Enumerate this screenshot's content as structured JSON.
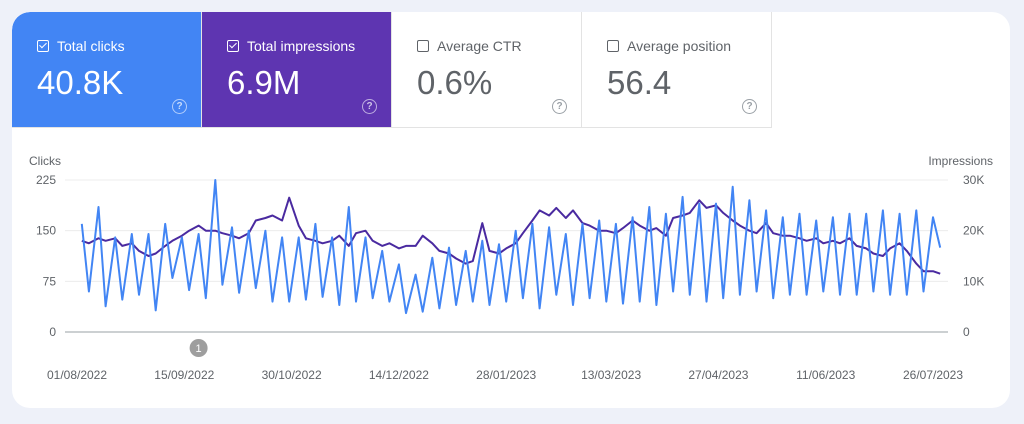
{
  "tiles": [
    {
      "label": "Total clicks",
      "value": "40.8K",
      "checked": true,
      "color": "#4285f4"
    },
    {
      "label": "Total impressions",
      "value": "6.9M",
      "checked": true,
      "color": "#5e35b1"
    },
    {
      "label": "Average CTR",
      "value": "0.6%",
      "checked": false
    },
    {
      "label": "Average position",
      "value": "56.4",
      "checked": false
    }
  ],
  "help_icon": "question-circle-icon",
  "chart_data": {
    "type": "line",
    "left_axis_label": "Clicks",
    "right_axis_label": "Impressions",
    "left_ylim": [
      0,
      225
    ],
    "right_ylim": [
      0,
      30000
    ],
    "left_ticks": [
      "0",
      "75",
      "150",
      "225"
    ],
    "right_ticks": [
      "0",
      "10K",
      "20K",
      "30K"
    ],
    "x_ticks": [
      "01/08/2022",
      "15/09/2022",
      "30/10/2022",
      "14/12/2022",
      "28/01/2023",
      "13/03/2023",
      "27/04/2023",
      "11/06/2023",
      "26/07/2023"
    ],
    "grid": true,
    "annotation": {
      "label": "1",
      "date": "21/09/2022"
    },
    "x": [
      "03/08/2022",
      "06/08/2022",
      "10/08/2022",
      "13/08/2022",
      "17/08/2022",
      "20/08/2022",
      "24/08/2022",
      "27/08/2022",
      "31/08/2022",
      "03/09/2022",
      "07/09/2022",
      "10/09/2022",
      "14/09/2022",
      "17/09/2022",
      "21/09/2022",
      "24/09/2022",
      "28/09/2022",
      "01/10/2022",
      "05/10/2022",
      "08/10/2022",
      "12/10/2022",
      "15/10/2022",
      "19/10/2022",
      "22/10/2022",
      "26/10/2022",
      "29/10/2022",
      "02/11/2022",
      "05/11/2022",
      "09/11/2022",
      "12/11/2022",
      "16/11/2022",
      "19/11/2022",
      "23/11/2022",
      "26/11/2022",
      "30/11/2022",
      "03/12/2022",
      "07/12/2022",
      "10/12/2022",
      "14/12/2022",
      "17/12/2022",
      "21/12/2022",
      "24/12/2022",
      "28/12/2022",
      "31/12/2022",
      "04/01/2023",
      "07/01/2023",
      "11/01/2023",
      "14/01/2023",
      "18/01/2023",
      "21/01/2023",
      "25/01/2023",
      "28/01/2023",
      "01/02/2023",
      "04/02/2023",
      "08/02/2023",
      "11/02/2023",
      "15/02/2023",
      "18/02/2023",
      "22/02/2023",
      "25/02/2023",
      "01/03/2023",
      "04/03/2023",
      "08/03/2023",
      "11/03/2023",
      "15/03/2023",
      "18/03/2023",
      "22/03/2023",
      "25/03/2023",
      "29/03/2023",
      "01/04/2023",
      "05/04/2023",
      "08/04/2023",
      "12/04/2023",
      "15/04/2023",
      "19/04/2023",
      "22/04/2023",
      "26/04/2023",
      "29/04/2023",
      "03/05/2023",
      "06/05/2023",
      "10/05/2023",
      "13/05/2023",
      "17/05/2023",
      "20/05/2023",
      "24/05/2023",
      "27/05/2023",
      "31/05/2023",
      "03/06/2023",
      "07/06/2023",
      "10/06/2023",
      "14/06/2023",
      "17/06/2023",
      "21/06/2023",
      "24/06/2023",
      "28/06/2023",
      "01/07/2023",
      "05/07/2023",
      "08/07/2023",
      "12/07/2023",
      "15/07/2023",
      "19/07/2023",
      "22/07/2023",
      "26/07/2023",
      "29/07/2023"
    ],
    "series": [
      {
        "name": "Clicks",
        "axis": "left",
        "color": "#4285f4",
        "values": [
          160,
          60,
          185,
          38,
          140,
          48,
          145,
          55,
          145,
          32,
          160,
          80,
          140,
          62,
          145,
          50,
          225,
          70,
          155,
          58,
          150,
          65,
          150,
          45,
          140,
          45,
          140,
          48,
          160,
          52,
          140,
          40,
          185,
          45,
          140,
          50,
          120,
          45,
          100,
          28,
          85,
          30,
          110,
          35,
          125,
          40,
          120,
          45,
          135,
          40,
          130,
          45,
          150,
          50,
          160,
          35,
          155,
          55,
          145,
          40,
          160,
          50,
          165,
          45,
          160,
          42,
          170,
          45,
          185,
          40,
          175,
          60,
          200,
          55,
          190,
          45,
          190,
          50,
          215,
          55,
          195,
          60,
          180,
          50,
          170,
          55,
          175,
          55,
          165,
          60,
          170,
          55,
          175,
          55,
          175,
          60,
          180,
          55,
          175,
          55,
          180,
          60,
          170,
          125
        ]
      },
      {
        "name": "Impressions",
        "axis": "right",
        "color": "#4a2aa0",
        "values": [
          18000,
          17500,
          18500,
          18000,
          18500,
          17000,
          17500,
          16000,
          15000,
          15500,
          17000,
          18000,
          19000,
          20000,
          21000,
          20000,
          20000,
          19500,
          19000,
          18500,
          19500,
          22000,
          22500,
          23000,
          22000,
          26500,
          21000,
          18500,
          18000,
          17500,
          18000,
          19000,
          17000,
          19500,
          20000,
          18000,
          17000,
          17500,
          16500,
          17000,
          17000,
          19000,
          17500,
          16000,
          15500,
          14500,
          13500,
          14000,
          21500,
          16000,
          15500,
          16500,
          17500,
          19500,
          22000,
          24000,
          23000,
          24500,
          22500,
          24000,
          21500,
          21000,
          20000,
          20000,
          19500,
          20500,
          22000,
          21000,
          20000,
          20500,
          19000,
          22500,
          23000,
          23500,
          26000,
          24500,
          25000,
          23500,
          22000,
          21000,
          20000,
          19500,
          21500,
          19500,
          19000,
          19000,
          18500,
          18000,
          18500,
          17500,
          18000,
          17500,
          18500,
          17000,
          16500,
          15500,
          15000,
          16500,
          17500,
          16000,
          13500,
          12000,
          12000,
          11500
        ]
      }
    ]
  }
}
